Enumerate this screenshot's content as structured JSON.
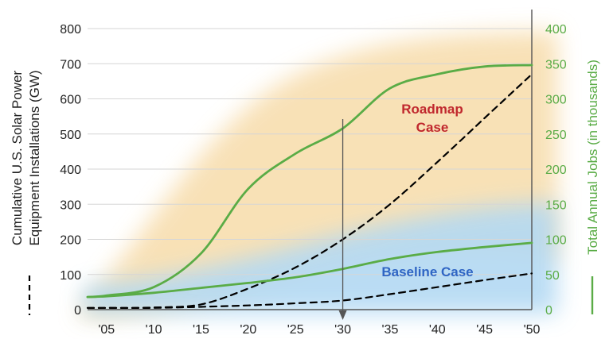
{
  "chart_data": {
    "type": "line",
    "x": [
      2003,
      2005,
      2010,
      2015,
      2020,
      2025,
      2030,
      2035,
      2040,
      2045,
      2050
    ],
    "x_ticks": [
      "'05",
      "'10",
      "'15",
      "'20",
      "'25",
      "'30",
      "'35",
      "'40",
      "'45",
      "'50"
    ],
    "x_tick_values": [
      2005,
      2010,
      2015,
      2020,
      2025,
      2030,
      2035,
      2040,
      2045,
      2050
    ],
    "xlim": [
      2003,
      2050
    ],
    "ylim_left": [
      0,
      800
    ],
    "ylim_right": [
      0,
      400
    ],
    "y_ticks_left": [
      "0",
      "100",
      "200",
      "300",
      "400",
      "500",
      "600",
      "700",
      "800"
    ],
    "y_ticks_right": [
      "0",
      "50",
      "100",
      "150",
      "200",
      "250",
      "300",
      "350",
      "400"
    ],
    "ylabel_left_line1": "Cumulative U.S. Solar Power",
    "ylabel_left_line2": "Equipment Installations (GW)",
    "ylabel_right": "Total Annual Jobs (in thousands)",
    "annotation_roadmap_line1": "Roadmap",
    "annotation_roadmap_line2": "Case",
    "annotation_baseline": "Baseline Case",
    "marker_year": 2030,
    "series": [
      {
        "axis": "left",
        "style": "dashed",
        "color": "#000000",
        "values": [
          5,
          5,
          6,
          15,
          60,
          120,
          200,
          300,
          420,
          545,
          670
        ]
      },
      {
        "axis": "right",
        "style": "solid",
        "color": "#5aac46",
        "values": [
          18,
          20,
          32,
          80,
          172,
          222,
          258,
          315,
          335,
          346,
          348
        ]
      },
      {
        "axis": "left",
        "style": "dashed",
        "color": "#000000",
        "values": [
          5,
          5,
          5,
          8,
          12,
          18,
          26,
          44,
          64,
          84,
          103
        ]
      },
      {
        "axis": "right",
        "style": "solid",
        "color": "#5aac46",
        "values": [
          18,
          19,
          24,
          31,
          38,
          46,
          58,
          72,
          82,
          89,
          95
        ]
      }
    ],
    "colors": {
      "green": "#5aac46",
      "roadmap_text": "#c0272d",
      "baseline_text": "#2f65c4",
      "tick_text": "#222222"
    }
  }
}
